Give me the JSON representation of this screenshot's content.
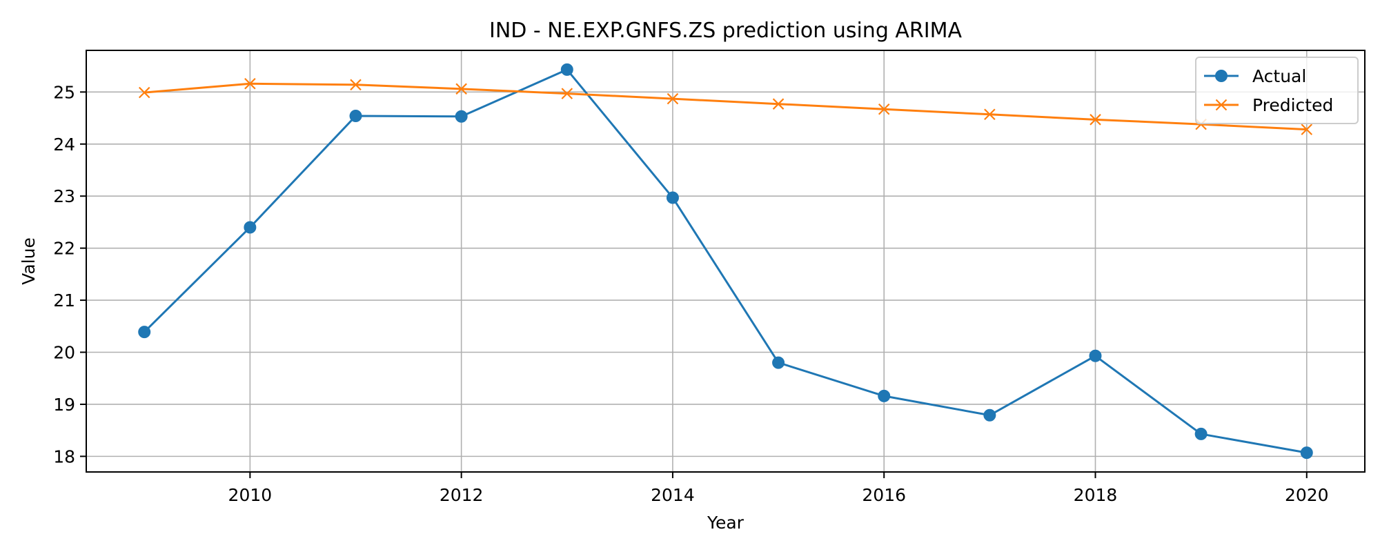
{
  "chart_data": {
    "type": "line",
    "title": "IND - NE.EXP.GNFS.ZS prediction using ARIMA",
    "xlabel": "Year",
    "ylabel": "Value",
    "xlim": [
      2008.45,
      2020.55
    ],
    "ylim": [
      17.7,
      25.8
    ],
    "x_ticks": [
      2010,
      2012,
      2014,
      2016,
      2018,
      2020
    ],
    "x_tick_labels": [
      "2010",
      "2012",
      "2014",
      "2016",
      "2018",
      "2020"
    ],
    "y_ticks": [
      18,
      19,
      20,
      21,
      22,
      23,
      24,
      25
    ],
    "y_tick_labels": [
      "18",
      "19",
      "20",
      "21",
      "22",
      "23",
      "24",
      "25"
    ],
    "grid": true,
    "legend_position": "top-right",
    "x": [
      2009,
      2010,
      2011,
      2012,
      2013,
      2014,
      2015,
      2016,
      2017,
      2018,
      2019,
      2020
    ],
    "series": [
      {
        "name": "Actual",
        "color": "#1f77b4",
        "marker": "circle",
        "values": [
          20.39,
          22.4,
          24.54,
          24.53,
          25.43,
          22.97,
          19.8,
          19.16,
          18.79,
          19.93,
          18.43,
          18.07
        ]
      },
      {
        "name": "Predicted",
        "color": "#ff7f0e",
        "marker": "x",
        "values": [
          24.99,
          25.16,
          25.14,
          25.06,
          24.97,
          24.87,
          24.77,
          24.67,
          24.57,
          24.47,
          24.38,
          24.28
        ]
      }
    ]
  }
}
